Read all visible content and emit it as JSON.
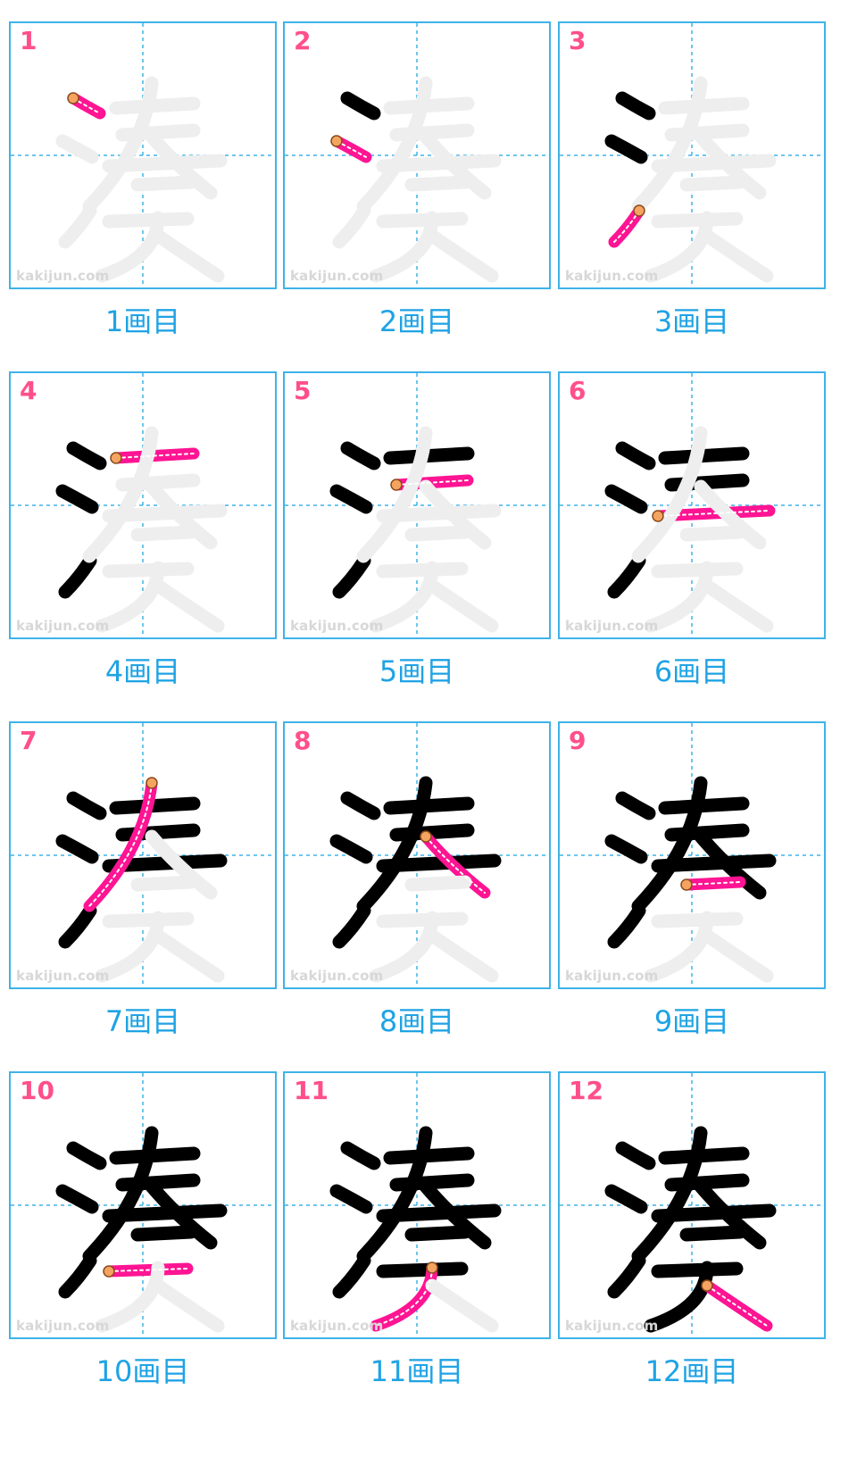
{
  "site_label": "kakijun.com",
  "colors": {
    "border": "#3eb3e8",
    "guide": "#3eb3e8",
    "ghost": "#eeeeee",
    "done": "#000000",
    "current": "#ff1493",
    "start_dot": "#f4a460",
    "number": "#ff4f8b",
    "caption": "#1fa3e4"
  },
  "steps": [
    {
      "number": "1",
      "caption": "1画目"
    },
    {
      "number": "2",
      "caption": "2画目"
    },
    {
      "number": "3",
      "caption": "3画目"
    },
    {
      "number": "4",
      "caption": "4画目"
    },
    {
      "number": "5",
      "caption": "5画目"
    },
    {
      "number": "6",
      "caption": "6画目"
    },
    {
      "number": "7",
      "caption": "7画目"
    },
    {
      "number": "8",
      "caption": "8画目"
    },
    {
      "number": "9",
      "caption": "9画目"
    },
    {
      "number": "10",
      "caption": "10画目"
    },
    {
      "number": "11",
      "caption": "11画目"
    },
    {
      "number": "12",
      "caption": "12画目"
    }
  ]
}
